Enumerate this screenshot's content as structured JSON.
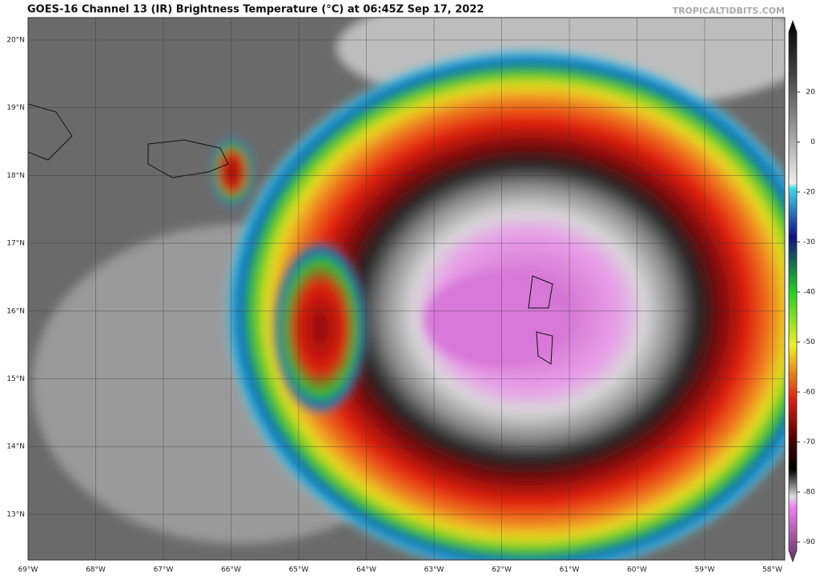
{
  "header": {
    "title": "GOES-16 Channel 13 (IR) Brightness Temperature (°C) at 06:45Z Sep 17, 2022",
    "credit": "TROPICALTIDBITS.COM"
  },
  "map": {
    "lat_labels": [
      "20°N",
      "19°N",
      "18°N",
      "17°N",
      "16°N",
      "15°N",
      "14°N",
      "13°N"
    ],
    "lon_labels": [
      "69°W",
      "68°W",
      "67°W",
      "66°W",
      "65°W",
      "64°W",
      "63°W",
      "62°W",
      "61°W",
      "60°W",
      "59°W",
      "58°W"
    ]
  },
  "colorbar": {
    "ticks": [
      20,
      0,
      -20,
      -30,
      -40,
      -50,
      -60,
      -70,
      -80,
      -90
    ]
  }
}
